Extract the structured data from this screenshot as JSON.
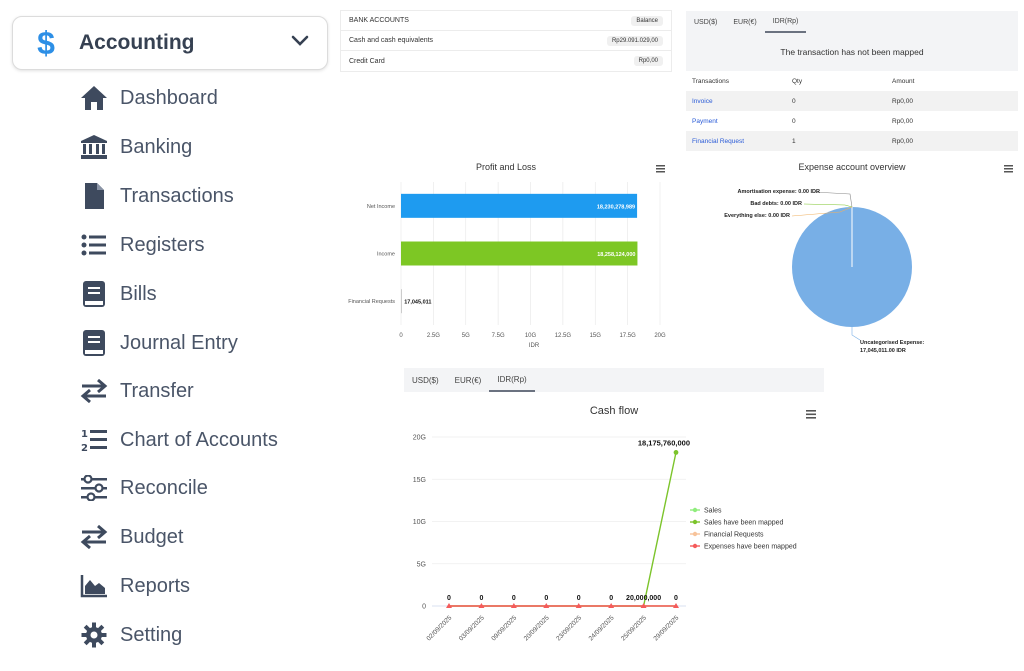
{
  "sidebar": {
    "title": "Accounting",
    "items": [
      {
        "label": "Dashboard",
        "icon": "home-icon"
      },
      {
        "label": "Banking",
        "icon": "bank-icon"
      },
      {
        "label": "Transactions",
        "icon": "file-icon"
      },
      {
        "label": "Registers",
        "icon": "list-icon"
      },
      {
        "label": "Bills",
        "icon": "book-icon"
      },
      {
        "label": "Journal Entry",
        "icon": "journal-icon"
      },
      {
        "label": "Transfer",
        "icon": "transfer-icon"
      },
      {
        "label": "Chart of Accounts",
        "icon": "numbered-list-icon"
      },
      {
        "label": "Reconcile",
        "icon": "sliders-icon"
      },
      {
        "label": "Budget",
        "icon": "budget-transfer-icon"
      },
      {
        "label": "Reports",
        "icon": "area-chart-icon"
      },
      {
        "label": "Setting",
        "icon": "gear-icon"
      }
    ]
  },
  "bank_accounts": {
    "header": "BANK ACCOUNTS",
    "balance_label": "Balance",
    "rows": [
      {
        "name": "Cash and cash equivalents",
        "balance": "Rp29.091.029,00"
      },
      {
        "name": "Credit Card",
        "balance": "Rp0,00"
      }
    ]
  },
  "transactions_panel": {
    "tabs": [
      "USD($)",
      "EUR(€)",
      "IDR(Rp)"
    ],
    "active_tab": "IDR(Rp)",
    "message": "The transaction has not been mapped",
    "columns": [
      "Transactions",
      "Qty",
      "Amount"
    ],
    "rows": [
      {
        "name": "Invoice",
        "qty": "0",
        "amount": "Rp0,00"
      },
      {
        "name": "Payment",
        "qty": "0",
        "amount": "Rp0,00"
      },
      {
        "name": "Financial Request",
        "qty": "1",
        "amount": "Rp0,00"
      }
    ]
  },
  "profit_loss": {
    "title": "Profit and Loss",
    "xlabel": "IDR",
    "colors": {
      "net_income": "#1e9bf0",
      "income": "#7dc724"
    },
    "chart_data": {
      "type": "bar",
      "orientation": "horizontal",
      "categories": [
        "Net Income",
        "Income",
        "Financial Requests"
      ],
      "values": [
        18230278989,
        18258124000,
        17045011
      ],
      "data_labels": [
        "18,230,278,989",
        "18,258,124,000",
        "17,045,011"
      ],
      "xticks": [
        "0",
        "2.5G",
        "5G",
        "7.5G",
        "10G",
        "12.5G",
        "15G",
        "17.5G",
        "20G"
      ],
      "xlim": [
        0,
        20000000000
      ],
      "xlabel": "IDR"
    }
  },
  "expense_overview": {
    "title": "Expense account overview",
    "color": "#78afe6",
    "chart_data": {
      "type": "pie",
      "slices": [
        {
          "label": "Uncategorised Expense",
          "value": 17045011.0
        },
        {
          "label": "Amortisation expense",
          "value": 0.0
        },
        {
          "label": "Bad debts",
          "value": 0.0
        },
        {
          "label": "Everything else",
          "value": 0.0
        }
      ],
      "labels_text": [
        "Amortisation expense: 0.00 IDR",
        "Bad debts: 0.00 IDR",
        "Everything else: 0.00 IDR"
      ],
      "main_label_line1": "Uncategorised Expense:",
      "main_label_line2": "17,045,011.00 IDR"
    }
  },
  "cashflow_panel": {
    "tabs": [
      "USD($)",
      "EUR(€)",
      "IDR(Rp)"
    ],
    "active_tab": "IDR(Rp)",
    "title": "Cash flow",
    "colors": {
      "sales": "#90ed7d",
      "sales_mapped": "#7cc42b",
      "financial_requests": "#f7c39a",
      "expenses_mapped": "#f45b5b"
    },
    "chart_data": {
      "type": "line",
      "x": [
        "02/09/2025",
        "03/09/2025",
        "09/09/2025",
        "20/09/2025",
        "23/09/2025",
        "24/09/2025",
        "25/09/2025",
        "29/09/2025"
      ],
      "yticks": [
        "0",
        "5G",
        "10G",
        "15G",
        "20G"
      ],
      "ylim": [
        0,
        20000000000
      ],
      "series": [
        {
          "name": "Sales",
          "values": [
            0,
            0,
            0,
            0,
            0,
            0,
            0,
            0
          ]
        },
        {
          "name": "Sales have been mapped",
          "values": [
            0,
            0,
            0,
            0,
            0,
            0,
            0,
            18175760000
          ]
        },
        {
          "name": "Financial Requests",
          "values": [
            0,
            0,
            0,
            0,
            0,
            0,
            20000000,
            0
          ]
        },
        {
          "name": "Expenses have been mapped",
          "values": [
            0,
            0,
            0,
            0,
            0,
            0,
            0,
            0
          ]
        }
      ],
      "data_labels": [
        "0",
        "0",
        "0",
        "0",
        "0",
        "0",
        "20,000,000",
        "0"
      ],
      "peak_label": "18,175,760,000"
    }
  }
}
